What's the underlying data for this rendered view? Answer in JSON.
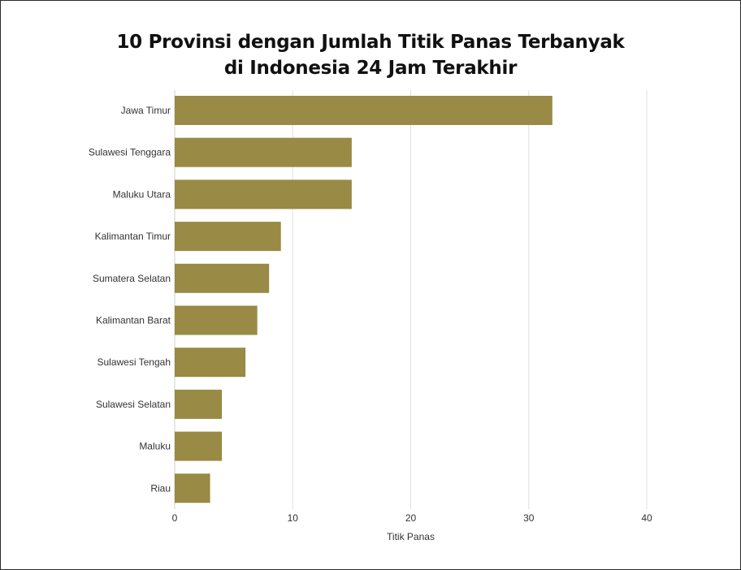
{
  "chart_data": {
    "type": "bar",
    "orientation": "horizontal",
    "title_lines": [
      "10 Provinsi dengan Jumlah Titik Panas Terbanyak",
      "di Indonesia 24 Jam Terakhir"
    ],
    "categories": [
      "Jawa Timur",
      "Sulawesi Tenggara",
      "Maluku Utara",
      "Kalimantan Timur",
      "Sumatera Selatan",
      "Kalimantan Barat",
      "Sulawesi Tengah",
      "Sulawesi Selatan",
      "Maluku",
      "Riau"
    ],
    "values": [
      32,
      15,
      15,
      9,
      8,
      7,
      6,
      4,
      4,
      3
    ],
    "xlabel": "Titik Panas",
    "ylabel": "",
    "xlim": [
      0,
      40
    ],
    "x_ticks": [
      0,
      10,
      20,
      30,
      40
    ],
    "grid": "vertical",
    "legend": "none",
    "bar_color": "#998a45",
    "grid_color": "#e0e0e0"
  }
}
